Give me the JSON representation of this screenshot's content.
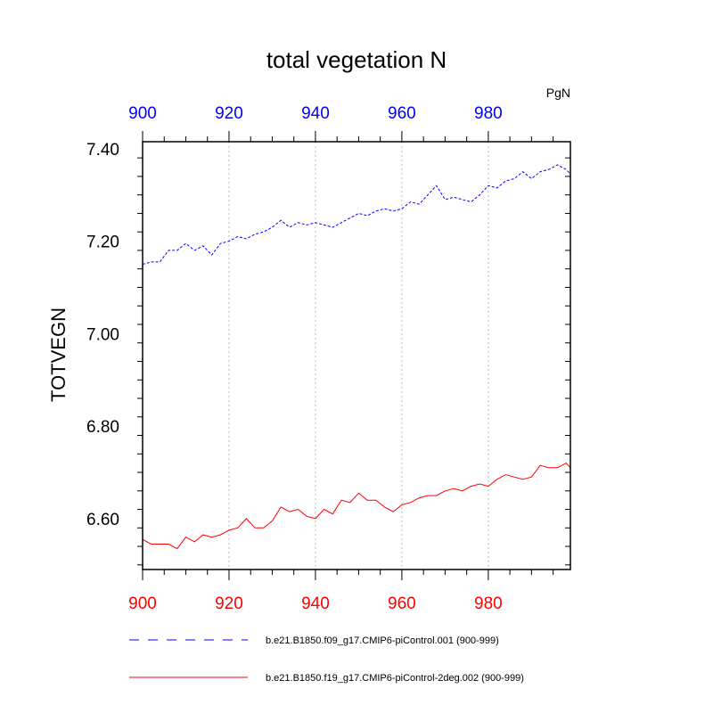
{
  "chart_data": {
    "type": "line",
    "title": "total vegetation N",
    "ylabel": "TOTVEGN",
    "units": "PgN",
    "xlim": [
      900,
      999
    ],
    "ylim": [
      6.49,
      7.415
    ],
    "x_ticks": [
      900,
      920,
      940,
      960,
      980
    ],
    "y_ticks": [
      6.6,
      6.8,
      7.0,
      7.2,
      7.4
    ],
    "y_tick_labels": [
      "6.60",
      "6.80",
      "7.00",
      "7.20",
      "7.40"
    ],
    "grid": "vertical dotted at x ticks",
    "colors": {
      "top_axis": "#0000ff",
      "bottom_axis": "#ff0000"
    },
    "series": [
      {
        "name": "b.e21.B1850.f09_g17.CMIP6-piControl.001 (900-999)",
        "color": "#0000ff",
        "dash": "dashed",
        "x": [
          900,
          902,
          904,
          906,
          908,
          910,
          912,
          914,
          916,
          918,
          920,
          922,
          924,
          926,
          928,
          930,
          932,
          934,
          936,
          938,
          940,
          942,
          944,
          946,
          948,
          950,
          952,
          954,
          956,
          958,
          960,
          962,
          964,
          966,
          968,
          970,
          972,
          974,
          976,
          978,
          980,
          982,
          984,
          986,
          988,
          990,
          992,
          994,
          996,
          998,
          999
        ],
        "values": [
          7.15,
          7.155,
          7.155,
          7.18,
          7.18,
          7.195,
          7.18,
          7.19,
          7.17,
          7.195,
          7.2,
          7.21,
          7.205,
          7.215,
          7.22,
          7.23,
          7.245,
          7.23,
          7.24,
          7.235,
          7.24,
          7.235,
          7.23,
          7.24,
          7.25,
          7.26,
          7.255,
          7.265,
          7.27,
          7.265,
          7.27,
          7.285,
          7.28,
          7.3,
          7.32,
          7.29,
          7.295,
          7.29,
          7.285,
          7.3,
          7.32,
          7.315,
          7.33,
          7.335,
          7.35,
          7.335,
          7.35,
          7.355,
          7.365,
          7.355,
          7.345
        ]
      },
      {
        "name": "b.e21.B1850.f19_g17.CMIP6-piControl-2deg.002 (900-999)",
        "color": "#ff0000",
        "dash": "solid",
        "x": [
          900,
          902,
          904,
          906,
          908,
          910,
          912,
          914,
          916,
          918,
          920,
          922,
          924,
          926,
          928,
          930,
          932,
          934,
          936,
          938,
          940,
          942,
          944,
          946,
          948,
          950,
          952,
          954,
          956,
          958,
          960,
          962,
          964,
          966,
          968,
          970,
          972,
          974,
          976,
          978,
          980,
          982,
          984,
          986,
          988,
          990,
          992,
          994,
          996,
          998,
          999
        ],
        "values": [
          6.555,
          6.545,
          6.545,
          6.545,
          6.535,
          6.56,
          6.55,
          6.565,
          6.56,
          6.565,
          6.575,
          6.58,
          6.6,
          6.58,
          6.58,
          6.595,
          6.625,
          6.615,
          6.62,
          6.605,
          6.6,
          6.62,
          6.61,
          6.64,
          6.635,
          6.655,
          6.64,
          6.64,
          6.625,
          6.615,
          6.63,
          6.635,
          6.645,
          6.65,
          6.65,
          6.66,
          6.665,
          6.66,
          6.67,
          6.675,
          6.67,
          6.685,
          6.695,
          6.69,
          6.685,
          6.69,
          6.715,
          6.71,
          6.71,
          6.72,
          6.71
        ]
      }
    ]
  }
}
